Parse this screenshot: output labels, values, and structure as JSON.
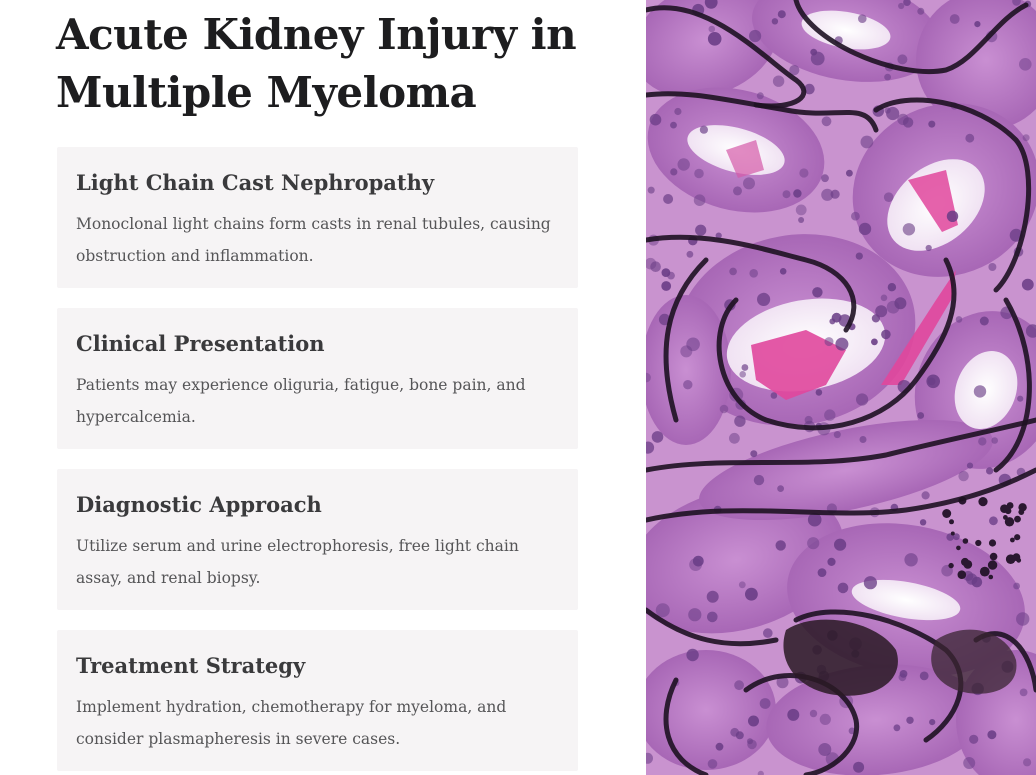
{
  "slide": {
    "title": "Acute Kidney Injury in Multiple Myeloma",
    "cards": [
      {
        "heading": "Light Chain Cast Nephropathy",
        "text": "Monoclonal light chains form casts in renal tubules, causing obstruction and inflammation."
      },
      {
        "heading": "Clinical Presentation",
        "text": "Patients may experience oliguria, fatigue, bone pain, and hypercalcemia."
      },
      {
        "heading": "Diagnostic Approach",
        "text": "Utilize serum and urine electrophoresis, free light chain assay, and renal biopsy."
      },
      {
        "heading": "Treatment Strategy",
        "text": "Implement hydration, chemotherapy for myeloma, and consider plasmapheresis in severe cases."
      }
    ]
  },
  "image": {
    "subject": "histology-micrograph",
    "colors": {
      "background": "#c993cf",
      "tubule_wall": "#a566b4",
      "membrane": "#1e1222",
      "nuclei": "#6a3d86",
      "lumen": "#f7eef8",
      "cast": "#e0479c"
    }
  }
}
